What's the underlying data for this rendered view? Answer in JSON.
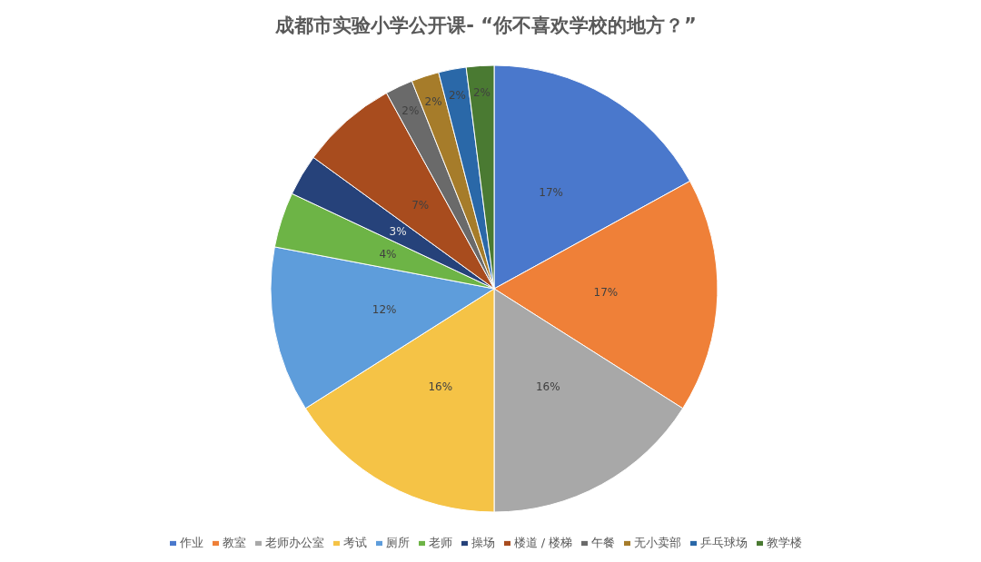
{
  "chart_data": {
    "type": "pie",
    "title": "成都市实验小学公开课- “你不喜欢学校的地方？”",
    "categories": [
      "作业",
      "教室",
      "老师办公室",
      "考试",
      "厕所",
      "老师",
      "操场",
      "楼道 / 楼梯",
      "午餐",
      "无小卖部",
      "乒乓球场",
      "教学楼"
    ],
    "values": [
      17,
      17,
      16,
      16,
      12,
      4,
      3,
      7,
      2,
      2,
      2,
      2
    ],
    "colors": [
      "#4a78cc",
      "#ef8038",
      "#a8a8a8",
      "#f5c346",
      "#5e9ddb",
      "#6db446",
      "#26427a",
      "#a84c1e",
      "#6a6a6a",
      "#a67c2a",
      "#2a68a8",
      "#4a7a32"
    ],
    "value_labels": [
      "17%",
      "17%",
      "16%",
      "16%",
      "12%",
      "4%",
      "3%",
      "7%",
      "2%",
      "2%",
      "2%",
      "2%"
    ],
    "legend": "bottom"
  }
}
